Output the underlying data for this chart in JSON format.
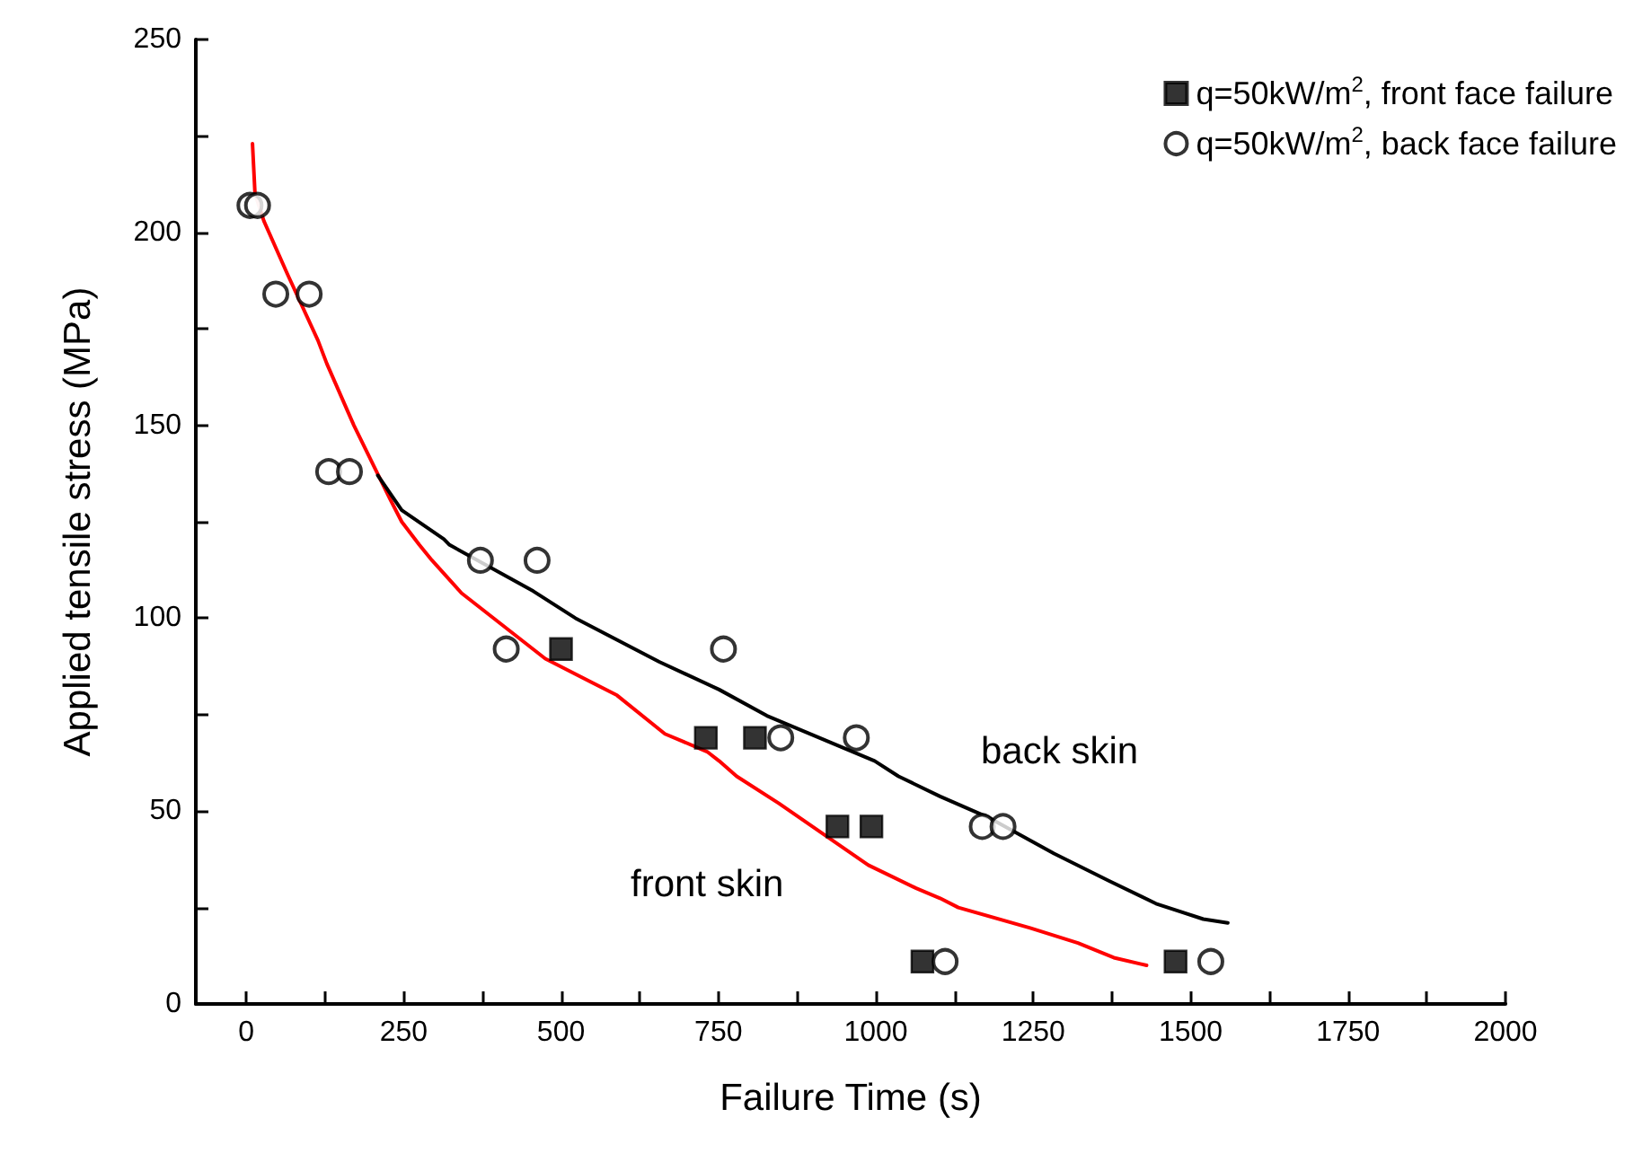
{
  "chart_data": {
    "type": "scatter",
    "xlabel": "Failure Time (s)",
    "ylabel": "Applied tensile stress (MPa)",
    "xlim": [
      -80,
      2000
    ],
    "ylim": [
      0,
      250
    ],
    "xticks": [
      0,
      {
        "value": 125,
        "label": null
      },
      250,
      {
        "value": 375,
        "label": null
      },
      500,
      {
        "value": 625,
        "label": null
      },
      750,
      {
        "value": 875,
        "label": null
      },
      1000,
      {
        "value": 1125,
        "label": null
      },
      1250,
      {
        "value": 1375,
        "label": null
      },
      1500,
      {
        "value": 1625,
        "label": null
      },
      1750,
      {
        "value": 1875,
        "label": null
      },
      2000
    ],
    "yticks": [
      0,
      {
        "value": 25,
        "label": null
      },
      50,
      {
        "value": 75,
        "label": null
      },
      100,
      {
        "value": 125,
        "label": null
      },
      150,
      {
        "value": 175,
        "label": null
      },
      200,
      {
        "value": 225,
        "label": null
      },
      250
    ],
    "grid": false,
    "legend": "top right",
    "series": [
      {
        "name": "q=50kW/m$^{2}$, front face failure",
        "marker": "square",
        "color": "#000000",
        "x": [
          500,
          730,
          808,
          939,
          993,
          1074,
          1476
        ],
        "values": [
          92,
          69,
          69,
          46,
          46,
          11,
          11
        ]
      },
      {
        "name": "q=50kW/m$^{2}$, back face failure",
        "marker": "circle",
        "color": "#000000",
        "x": [
          6,
          18,
          47,
          100,
          131,
          164,
          372,
          462,
          413,
          758,
          849,
          969,
          1169,
          1202,
          1110,
          1532
        ],
        "values": [
          207,
          207,
          184,
          184,
          138,
          138,
          115,
          115,
          92,
          92,
          69,
          69,
          46,
          46,
          11,
          11
        ]
      },
      {
        "type": "line",
        "marker": "none",
        "color": "#ff0000",
        "x": [
          10,
          14,
          28,
          66,
          114,
          128,
          171,
          228,
          247,
          275,
          295,
          342,
          475,
          589,
          665,
          732,
          751,
          779,
          846,
          988,
          1064,
          1102,
          1131,
          1245,
          1321,
          1378,
          1430
        ],
        "values": [
          223,
          210,
          203,
          189,
          172,
          166,
          150,
          131,
          125,
          119,
          115,
          106.5,
          89.5,
          80,
          70,
          65.4,
          63,
          59,
          52,
          36,
          30,
          27.4,
          25,
          19.7,
          15.8,
          12,
          10
        ]
      },
      {
        "type": "line",
        "marker": "none",
        "color": "#000000",
        "x": [
          209,
          247,
          314,
          323,
          456,
          523,
          656,
          751,
          827,
          998,
          1036,
          1102,
          1178,
          1283,
          1369,
          1445,
          1520,
          1559
        ],
        "values": [
          137,
          128,
          120.5,
          119,
          107,
          100,
          88.7,
          81.5,
          74.7,
          63,
          59,
          53.8,
          48.4,
          39,
          32,
          26,
          22,
          21
        ]
      }
    ],
    "annotations": [
      "back skin",
      "front skin"
    ]
  }
}
